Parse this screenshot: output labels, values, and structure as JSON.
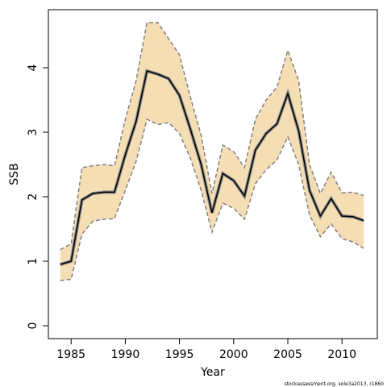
{
  "chart_data": {
    "type": "line",
    "x_label": "Year",
    "y_label": "SSB",
    "footnote": "stockassessment.org, sole3a2013, r1860",
    "x": [
      1984,
      1985,
      1986,
      1987,
      1988,
      1989,
      1990,
      1991,
      1992,
      1993,
      1994,
      1995,
      1996,
      1997,
      1998,
      1999,
      2000,
      2001,
      2002,
      2003,
      2004,
      2005,
      2006,
      2007,
      2008,
      2009,
      2010,
      2011,
      2012
    ],
    "values": [
      0.95,
      1.0,
      1.95,
      2.05,
      2.07,
      2.07,
      2.65,
      3.17,
      3.95,
      3.9,
      3.83,
      3.57,
      3.05,
      2.5,
      1.75,
      2.36,
      2.25,
      2.01,
      2.72,
      2.98,
      3.13,
      3.6,
      3.02,
      2.1,
      1.7,
      1.97,
      1.7,
      1.69,
      1.63
    ],
    "upper": [
      1.18,
      1.27,
      2.45,
      2.48,
      2.5,
      2.48,
      3.2,
      3.8,
      4.7,
      4.7,
      4.45,
      4.2,
      3.55,
      2.95,
      2.05,
      2.8,
      2.7,
      2.45,
      3.2,
      3.5,
      3.7,
      4.27,
      3.8,
      2.5,
      2.05,
      2.38,
      2.06,
      2.07,
      2.02
    ],
    "lower": [
      0.7,
      0.72,
      1.42,
      1.62,
      1.65,
      1.66,
      2.1,
      2.55,
      3.2,
      3.12,
      3.15,
      2.98,
      2.6,
      2.1,
      1.45,
      1.9,
      1.82,
      1.65,
      2.2,
      2.42,
      2.57,
      2.93,
      2.5,
      1.72,
      1.38,
      1.58,
      1.35,
      1.3,
      1.2
    ],
    "color": "#000000",
    "band_color": "#f5deb3",
    "band_edge_color": "#808080",
    "xlim": [
      1982.9,
      2013.26
    ],
    "ylim": [
      -0.2,
      4.9
    ],
    "xticks": [
      1985,
      1990,
      1995,
      2000,
      2005,
      2010
    ],
    "yticks": [
      0,
      1,
      2,
      3,
      4
    ]
  }
}
